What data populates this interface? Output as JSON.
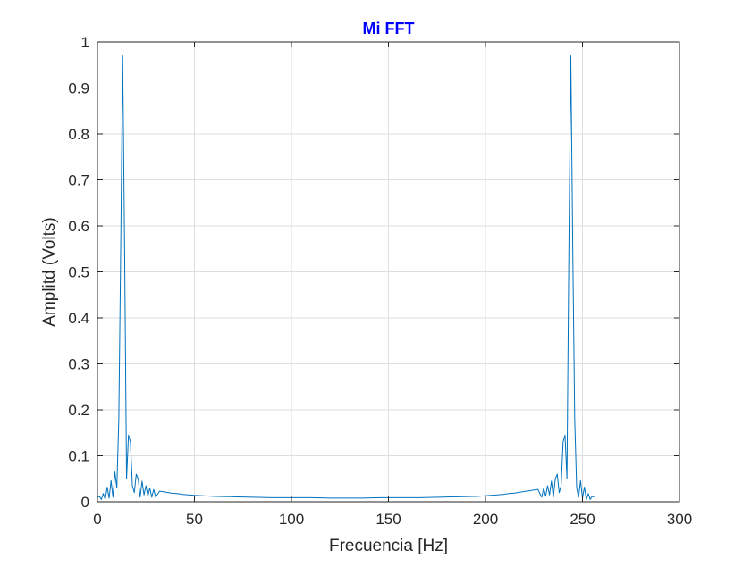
{
  "chart_data": {
    "type": "line",
    "title": "Mi FFT",
    "title_color": "#0000ff",
    "xlabel": "Frecuencia [Hz]",
    "ylabel": "Amplitd (Volts)",
    "xlim": [
      0,
      300
    ],
    "ylim": [
      0,
      1
    ],
    "xticks": [
      0,
      50,
      100,
      150,
      200,
      250,
      300
    ],
    "xtick_labels": [
      "0",
      "50",
      "100",
      "150",
      "200",
      "250",
      "300"
    ],
    "yticks": [
      0,
      0.1,
      0.2,
      0.3,
      0.4,
      0.5,
      0.6,
      0.7,
      0.8,
      0.9,
      1
    ],
    "ytick_labels": [
      "0",
      "0.1",
      "0.2",
      "0.3",
      "0.4",
      "0.5",
      "0.6",
      "0.7",
      "0.8",
      "0.9",
      "1"
    ],
    "grid": true,
    "line_color": "#0072bd",
    "series": [
      {
        "x": [
          0,
          1,
          2,
          3,
          4,
          5,
          6,
          7,
          8,
          9,
          10,
          11,
          12,
          13,
          14,
          15,
          16,
          17,
          18,
          19,
          20,
          21,
          22,
          23,
          24,
          25,
          26,
          27,
          28,
          29,
          30,
          32,
          35,
          38,
          41,
          44,
          47,
          50,
          60,
          70,
          80,
          90,
          100,
          110,
          120,
          128,
          136,
          146,
          156,
          166,
          176,
          186,
          196,
          206,
          209,
          212,
          215,
          218,
          221,
          224,
          227,
          229,
          230,
          231,
          232,
          233,
          234,
          235,
          236,
          237,
          238,
          239,
          240,
          241,
          242,
          243,
          244,
          245,
          246,
          247,
          248,
          249,
          250,
          251,
          252,
          253,
          254,
          255,
          256
        ],
        "y": [
          0.01,
          0.012,
          0.005,
          0.018,
          0.005,
          0.032,
          0.008,
          0.046,
          0.01,
          0.065,
          0.03,
          0.18,
          0.55,
          0.97,
          0.55,
          0.05,
          0.145,
          0.13,
          0.035,
          0.02,
          0.06,
          0.05,
          0.01,
          0.045,
          0.015,
          0.035,
          0.012,
          0.03,
          0.01,
          0.027,
          0.01,
          0.023,
          0.021,
          0.019,
          0.018,
          0.016,
          0.015,
          0.014,
          0.012,
          0.011,
          0.01,
          0.009,
          0.009,
          0.009,
          0.008,
          0.008,
          0.008,
          0.009,
          0.009,
          0.009,
          0.01,
          0.011,
          0.012,
          0.015,
          0.016,
          0.018,
          0.019,
          0.021,
          0.023,
          0.025,
          0.027,
          0.01,
          0.03,
          0.012,
          0.035,
          0.015,
          0.045,
          0.01,
          0.05,
          0.06,
          0.02,
          0.035,
          0.13,
          0.145,
          0.05,
          0.55,
          0.97,
          0.55,
          0.18,
          0.03,
          0.01,
          0.046,
          0.008,
          0.032,
          0.005,
          0.018,
          0.005,
          0.012,
          0.01
        ]
      }
    ]
  }
}
